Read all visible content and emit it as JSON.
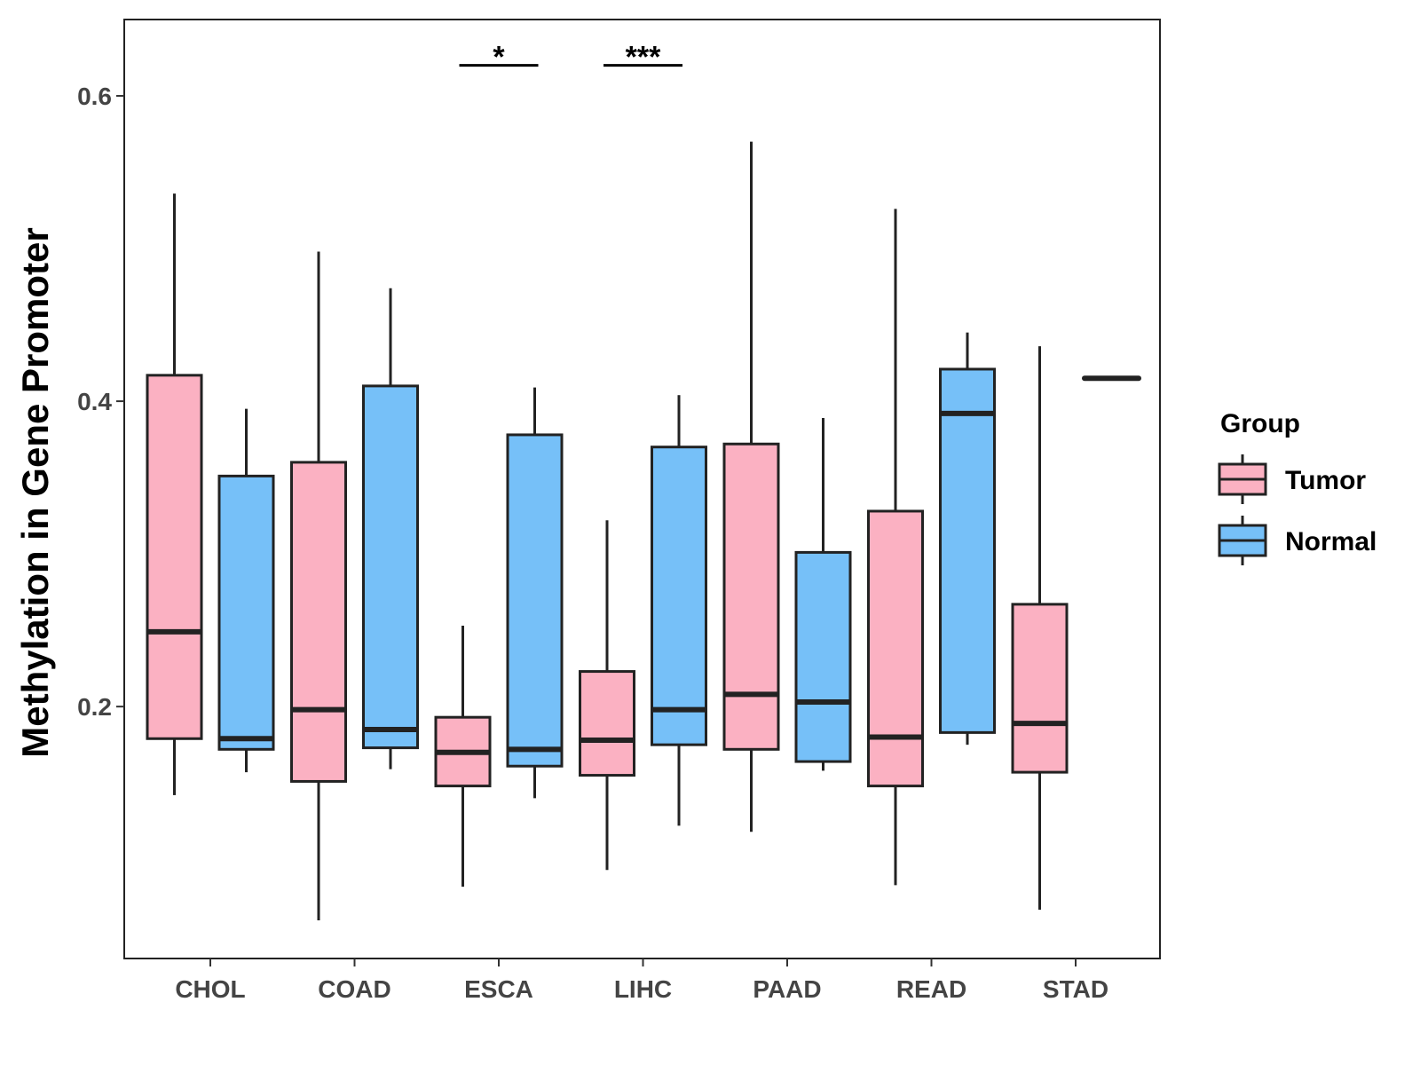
{
  "chart_data": {
    "type": "boxplot",
    "title": "",
    "xlabel": "",
    "ylabel": "Methylation in Gene Promoter",
    "ylim": [
      0.035,
      0.65
    ],
    "yticks": [
      0.2,
      0.4,
      0.6
    ],
    "ytick_labels": [
      "0.2",
      "0.4",
      "0.6"
    ],
    "categories": [
      "CHOL",
      "COAD",
      "ESCA",
      "LIHC",
      "PAAD",
      "READ",
      "STAD"
    ],
    "legend": {
      "title": "Group",
      "position": "right",
      "entries": [
        {
          "name": "Tumor",
          "color": "#FBB1C2"
        },
        {
          "name": "Normal",
          "color": "#76C0F8"
        }
      ]
    },
    "series": [
      {
        "name": "Tumor",
        "color": "#FBB1C2",
        "boxes": [
          {
            "category": "CHOL",
            "min": 0.142,
            "q1": 0.179,
            "median": 0.249,
            "q3": 0.417,
            "max": 0.536
          },
          {
            "category": "COAD",
            "min": 0.06,
            "q1": 0.151,
            "median": 0.198,
            "q3": 0.36,
            "max": 0.498
          },
          {
            "category": "ESCA",
            "min": 0.082,
            "q1": 0.148,
            "median": 0.17,
            "q3": 0.193,
            "max": 0.253
          },
          {
            "category": "LIHC",
            "min": 0.093,
            "q1": 0.155,
            "median": 0.178,
            "q3": 0.223,
            "max": 0.322
          },
          {
            "category": "PAAD",
            "min": 0.118,
            "q1": 0.172,
            "median": 0.208,
            "q3": 0.372,
            "max": 0.57
          },
          {
            "category": "READ",
            "min": 0.083,
            "q1": 0.148,
            "median": 0.18,
            "q3": 0.328,
            "max": 0.526
          },
          {
            "category": "STAD",
            "min": 0.067,
            "q1": 0.157,
            "median": 0.189,
            "q3": 0.267,
            "max": 0.436
          }
        ]
      },
      {
        "name": "Normal",
        "color": "#76C0F8",
        "boxes": [
          {
            "category": "CHOL",
            "min": 0.157,
            "q1": 0.172,
            "median": 0.179,
            "q3": 0.351,
            "max": 0.395
          },
          {
            "category": "COAD",
            "min": 0.159,
            "q1": 0.173,
            "median": 0.185,
            "q3": 0.41,
            "max": 0.474
          },
          {
            "category": "ESCA",
            "min": 0.14,
            "q1": 0.161,
            "median": 0.172,
            "q3": 0.378,
            "max": 0.409
          },
          {
            "category": "LIHC",
            "min": 0.122,
            "q1": 0.175,
            "median": 0.198,
            "q3": 0.37,
            "max": 0.404
          },
          {
            "category": "PAAD",
            "min": 0.158,
            "q1": 0.164,
            "median": 0.203,
            "q3": 0.301,
            "max": 0.389
          },
          {
            "category": "READ",
            "min": 0.175,
            "q1": 0.183,
            "median": 0.392,
            "q3": 0.421,
            "max": 0.445
          },
          {
            "category": "STAD",
            "min": 0.415,
            "q1": 0.415,
            "median": 0.415,
            "q3": 0.415,
            "max": 0.415
          }
        ]
      }
    ],
    "significance": [
      {
        "category": "ESCA",
        "label": "*",
        "y": 0.62
      },
      {
        "category": "LIHC",
        "label": "***",
        "y": 0.62
      }
    ],
    "grid": false
  }
}
